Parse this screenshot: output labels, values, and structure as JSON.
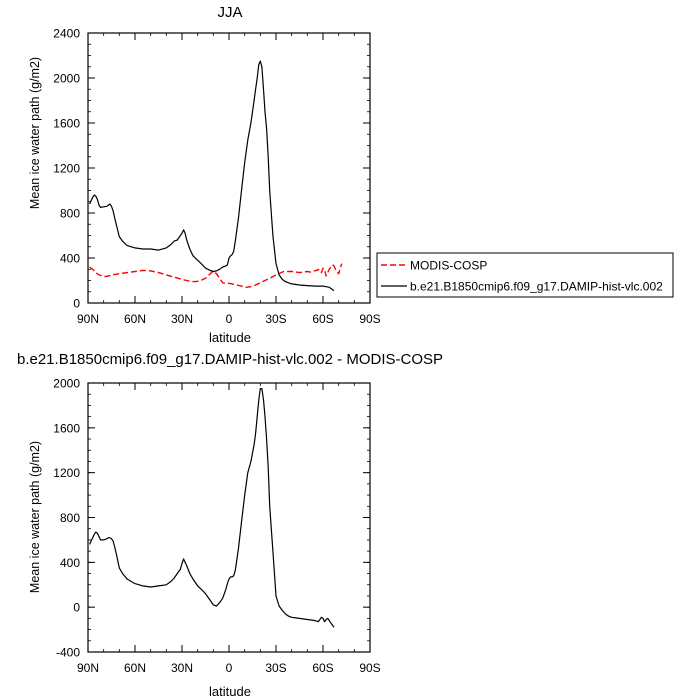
{
  "chart_data": [
    {
      "type": "line",
      "title": "JJA",
      "xlabel": "latitude",
      "ylabel": "Mean ice water path (g/m2)",
      "xlim": [
        90,
        -90
      ],
      "ylim": [
        0,
        2400
      ],
      "x_ticks": [
        90,
        60,
        30,
        0,
        -30,
        -60,
        -90
      ],
      "x_tick_labels": [
        "90N",
        "60N",
        "30N",
        "0",
        "30S",
        "60S",
        "90S"
      ],
      "y_ticks": [
        0,
        400,
        800,
        1200,
        1600,
        2000,
        2400
      ],
      "y_tick_labels": [
        "0",
        "400",
        "800",
        "1200",
        "1600",
        "2000",
        "2400"
      ],
      "grid": false,
      "legend_position": "right",
      "series": [
        {
          "name": "MODIS-COSP",
          "color": "#ff0000",
          "dash": "dashed",
          "x": [
            89,
            87,
            85,
            83,
            81,
            79,
            77,
            75,
            70,
            65,
            60,
            55,
            50,
            45,
            40,
            35,
            30,
            27,
            24,
            21,
            18,
            15,
            12,
            10,
            8,
            6,
            4,
            2,
            0,
            -2,
            -5,
            -8,
            -11,
            -14,
            -17,
            -20,
            -23,
            -26,
            -30,
            -35,
            -40,
            -45,
            -50,
            -52,
            -54,
            -56,
            -57,
            -58,
            -59,
            -60,
            -61,
            -62,
            -63,
            -64,
            -65,
            -66,
            -67,
            -68,
            -69,
            -70,
            -71,
            -72
          ],
          "y": [
            320,
            300,
            270,
            250,
            240,
            235,
            240,
            250,
            260,
            270,
            280,
            290,
            285,
            270,
            250,
            230,
            210,
            200,
            190,
            190,
            200,
            220,
            260,
            285,
            260,
            220,
            180,
            175,
            175,
            170,
            160,
            150,
            140,
            145,
            160,
            180,
            200,
            220,
            250,
            280,
            280,
            270,
            280,
            275,
            285,
            290,
            300,
            280,
            270,
            310,
            290,
            240,
            270,
            300,
            320,
            340,
            330,
            300,
            280,
            260,
            310,
            350
          ]
        },
        {
          "name": "b.e21.B1850cmip6.f09_g17.DAMIP-hist-vlc.002",
          "color": "#000000",
          "dash": "solid",
          "x": [
            89,
            88,
            87,
            86,
            85,
            84,
            83,
            82,
            80,
            78,
            77,
            76,
            75,
            74,
            73,
            72,
            70,
            68,
            65,
            60,
            55,
            50,
            45,
            40,
            37,
            35,
            33,
            31,
            30,
            29,
            28,
            27,
            25,
            23,
            20,
            17,
            15,
            12,
            10,
            8,
            6,
            4,
            2,
            1,
            0,
            -1,
            -2,
            -3,
            -4,
            -6,
            -8,
            -10,
            -12,
            -14,
            -16,
            -17,
            -18,
            -19,
            -20,
            -21,
            -22,
            -23,
            -24,
            -25,
            -26,
            -28,
            -30,
            -32,
            -34,
            -36,
            -38,
            -40,
            -45,
            -50,
            -55,
            -60,
            -62,
            -64,
            -65,
            -66,
            -67
          ],
          "y": [
            880,
            910,
            940,
            960,
            950,
            920,
            870,
            850,
            855,
            860,
            870,
            880,
            860,
            820,
            760,
            700,
            590,
            550,
            510,
            490,
            480,
            480,
            470,
            490,
            520,
            550,
            560,
            600,
            620,
            650,
            620,
            560,
            480,
            420,
            380,
            340,
            310,
            290,
            280,
            285,
            300,
            320,
            330,
            340,
            400,
            420,
            430,
            460,
            550,
            750,
            1000,
            1250,
            1450,
            1600,
            1800,
            1900,
            2000,
            2120,
            2150,
            2100,
            1900,
            1700,
            1550,
            1300,
            1000,
            600,
            350,
            250,
            210,
            190,
            180,
            170,
            160,
            155,
            150,
            150,
            145,
            140,
            130,
            120,
            110
          ]
        }
      ]
    },
    {
      "type": "line",
      "title": "b.e21.B1850cmip6.f09_g17.DAMIP-hist-vlc.002 - MODIS-COSP",
      "xlabel": "latitude",
      "ylabel": "Mean ice water path (g/m2)",
      "xlim": [
        90,
        -90
      ],
      "ylim": [
        -400,
        2000
      ],
      "x_ticks": [
        90,
        60,
        30,
        0,
        -30,
        -60,
        -90
      ],
      "x_tick_labels": [
        "90N",
        "60N",
        "30N",
        "0",
        "30S",
        "60S",
        "90S"
      ],
      "y_ticks": [
        -400,
        0,
        400,
        800,
        1200,
        1600,
        2000
      ],
      "y_tick_labels": [
        "-400",
        "0",
        "400",
        "800",
        "1200",
        "1600",
        "2000"
      ],
      "grid": false,
      "series": [
        {
          "color": "#000000",
          "dash": "solid",
          "x": [
            89,
            88,
            87,
            86,
            85,
            84,
            83,
            82,
            80,
            78,
            77,
            76,
            75,
            74,
            73,
            72,
            70,
            68,
            65,
            60,
            55,
            50,
            45,
            40,
            37,
            35,
            33,
            31,
            30,
            29,
            28,
            27,
            25,
            23,
            20,
            17,
            15,
            12,
            10,
            8,
            6,
            4,
            2,
            1,
            0,
            -1,
            -2,
            -3,
            -4,
            -6,
            -8,
            -10,
            -12,
            -14,
            -16,
            -17,
            -18,
            -19,
            -20,
            -21,
            -22,
            -23,
            -24,
            -25,
            -26,
            -28,
            -30,
            -32,
            -34,
            -36,
            -38,
            -40,
            -45,
            -50,
            -55,
            -57,
            -58,
            -59,
            -60,
            -61,
            -62,
            -63,
            -64,
            -65,
            -66,
            -67
          ],
          "y": [
            560,
            590,
            620,
            650,
            670,
            660,
            630,
            600,
            600,
            610,
            620,
            620,
            610,
            590,
            540,
            480,
            350,
            300,
            250,
            210,
            190,
            180,
            190,
            200,
            230,
            260,
            300,
            340,
            390,
            430,
            400,
            370,
            300,
            250,
            190,
            150,
            120,
            60,
            20,
            10,
            40,
            80,
            160,
            210,
            250,
            270,
            270,
            280,
            330,
            520,
            760,
            1000,
            1200,
            1300,
            1450,
            1550,
            1700,
            1850,
            1950,
            1950,
            1850,
            1700,
            1500,
            1250,
            900,
            500,
            100,
            10,
            -30,
            -60,
            -80,
            -90,
            -100,
            -110,
            -120,
            -130,
            -110,
            -90,
            -100,
            -130,
            -110,
            -100,
            -120,
            -140,
            -160,
            -180
          ]
        }
      ]
    }
  ]
}
